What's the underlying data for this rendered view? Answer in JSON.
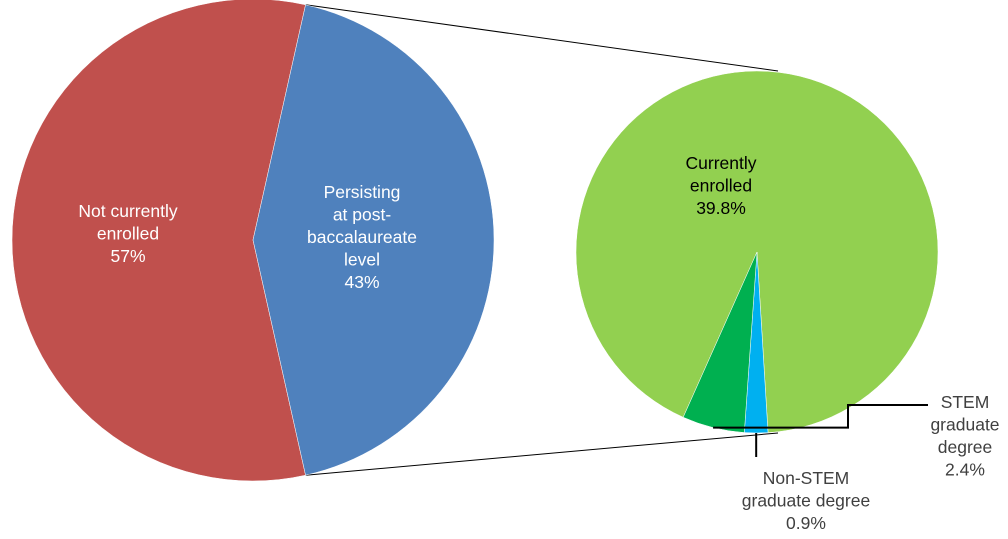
{
  "chart_data": {
    "type": "pie",
    "subtype": "pie-of-pie",
    "main_pie": {
      "slices": [
        {
          "label_lines": [
            "Not currently",
            "enrolled",
            "57%"
          ],
          "value": 57,
          "color": "#c0504d",
          "label_color": "#ffffff"
        },
        {
          "label_lines": [
            "Persisting",
            "at post-",
            "baccalaureate",
            "level",
            "43%"
          ],
          "value": 43,
          "color": "#4f81bd",
          "label_color": "#ffffff"
        }
      ]
    },
    "secondary_pie": {
      "total": 43,
      "slices": [
        {
          "label_lines": [
            "Currently",
            "enrolled",
            "39.8%"
          ],
          "value": 39.8,
          "color": "#92d050",
          "label_color": "#000000"
        },
        {
          "label_lines": [
            "Non-STEM",
            "graduate degree",
            "0.9%"
          ],
          "value": 0.9,
          "color": "#00b0f0",
          "label_color": "#404040"
        },
        {
          "label_lines": [
            "STEM",
            "graduate",
            "degree",
            "2.4%"
          ],
          "value": 2.4,
          "color": "#00b050",
          "label_color": "#404040"
        }
      ]
    },
    "legend": "none",
    "connector_lines": true
  }
}
